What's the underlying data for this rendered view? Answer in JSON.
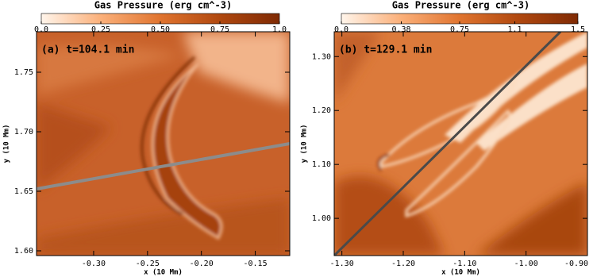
{
  "chart_data": [
    {
      "type": "heatmap",
      "title": "Gas Pressure (erg cm^-3)",
      "annotation": "(a) t=104.1 min",
      "xlabel": "x (10 Mm)",
      "ylabel": "y (10 Mm)",
      "xlim": [
        -0.353,
        -0.118
      ],
      "ylim": [
        1.596,
        1.784
      ],
      "xticks": [
        {
          "value": -0.3,
          "label": "-0.30"
        },
        {
          "value": -0.25,
          "label": "-0.25"
        },
        {
          "value": -0.2,
          "label": "-0.20"
        },
        {
          "value": -0.15,
          "label": "-0.15"
        }
      ],
      "yticks": [
        {
          "value": 1.6,
          "label": "1.60"
        },
        1.65,
        {
          "value": 1.7,
          "label": "1.70"
        },
        1.75
      ],
      "clim": [
        0,
        1
      ],
      "cticks": [
        {
          "value": 0,
          "label": "0.0"
        },
        0.25,
        {
          "value": 0.5,
          "label": "0.50"
        },
        0.75,
        {
          "value": 1,
          "label": "1.0"
        }
      ],
      "colormap": [
        "#fff5eb",
        "#fbb07a",
        "#e0742f",
        "#b0480f",
        "#7f2a04"
      ]
    },
    {
      "type": "heatmap",
      "title": "Gas Pressure (erg cm^-3)",
      "annotation": "(b) t=129.1 min",
      "xlabel": "x (10 Mm)",
      "ylabel": "y (10 Mm)",
      "xlim": [
        -1.3125,
        -0.9
      ],
      "ylim": [
        0.931,
        1.346
      ],
      "xticks": [
        {
          "value": -1.3,
          "label": "-1.30"
        },
        {
          "value": -1.2,
          "label": "-1.20"
        },
        {
          "value": -1.1,
          "label": "-1.10"
        },
        {
          "value": -1.0,
          "label": "-1.00"
        },
        {
          "value": -0.9,
          "label": "-0.90"
        }
      ],
      "yticks": [
        {
          "value": 1.0,
          "label": "1.00"
        },
        {
          "value": 1.1,
          "label": "1.10"
        },
        {
          "value": 1.2,
          "label": "1.20"
        },
        {
          "value": 1.3,
          "label": "1.30"
        }
      ],
      "clim": [
        0,
        1.5
      ],
      "cticks": [
        {
          "value": 0,
          "label": "0.0"
        },
        0.38,
        0.75,
        1.1,
        1.5
      ],
      "colormap": [
        "#fff5eb",
        "#fbb07a",
        "#e0742f",
        "#b0480f",
        "#7f2a04"
      ]
    }
  ]
}
